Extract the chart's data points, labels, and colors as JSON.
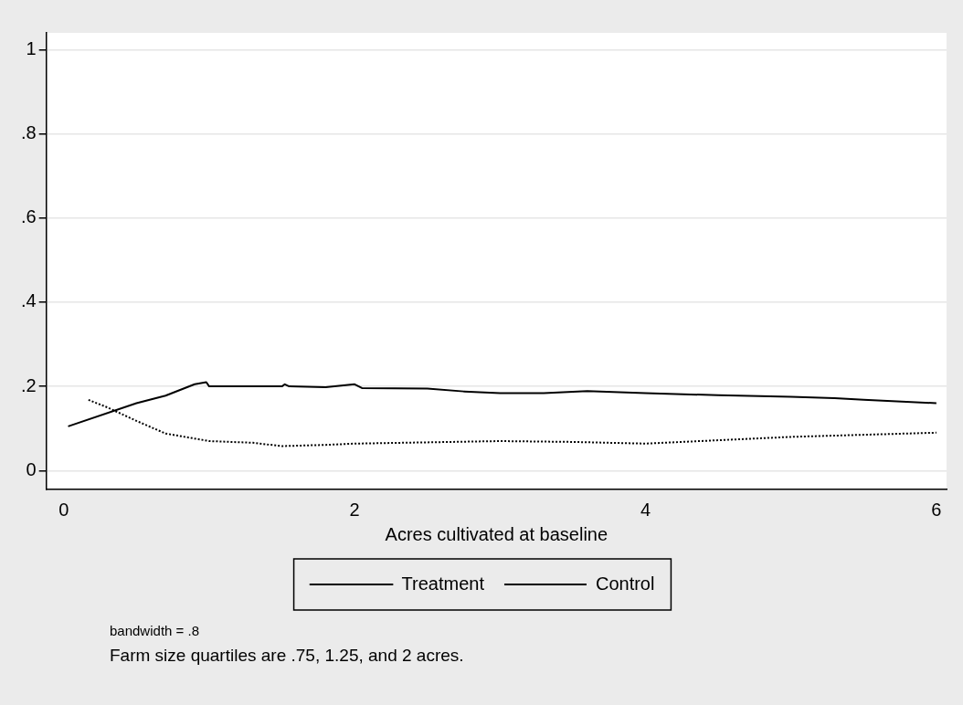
{
  "chart_data": {
    "type": "line",
    "xlabel": "Acres cultivated at baseline",
    "xlim": [
      -0.12,
      6.07
    ],
    "xticks": [
      0,
      2,
      4,
      6
    ],
    "ylim": [
      -0.045,
      1.04
    ],
    "yticks": [
      0,
      {
        "value": 0.2,
        "label": ".2"
      },
      {
        "value": 0.4,
        "label": ".4"
      },
      {
        "value": 0.6,
        "label": ".6"
      },
      {
        "value": 0.8,
        "label": ".8"
      },
      1
    ],
    "grid": "y",
    "legend": "bottom",
    "marker": "none",
    "series": [
      {
        "name": "Treatment",
        "color": "#000000",
        "line_style": "solid",
        "x": [
          0.03,
          0.5,
          0.7,
          0.9,
          0.98,
          1.0,
          1.3,
          1.5,
          1.52,
          1.55,
          1.8,
          2.0,
          2.05,
          2.5,
          2.75,
          3.0,
          3.3,
          3.6,
          4.0,
          4.5,
          5.0,
          5.3,
          5.5,
          6.0
        ],
        "values": [
          0.105,
          0.16,
          0.178,
          0.205,
          0.21,
          0.2,
          0.2,
          0.2,
          0.205,
          0.2,
          0.198,
          0.205,
          0.196,
          0.195,
          0.188,
          0.184,
          0.184,
          0.189,
          0.184,
          0.179,
          0.175,
          0.172,
          0.168,
          0.16
        ]
      },
      {
        "name": "Control",
        "color": "#000000",
        "line_style": "dotted",
        "x": [
          0.17,
          0.3,
          0.5,
          0.7,
          1.0,
          1.3,
          1.5,
          1.8,
          2.0,
          2.5,
          3.0,
          3.5,
          4.0,
          4.5,
          5.0,
          5.5,
          6.0
        ],
        "values": [
          0.168,
          0.15,
          0.118,
          0.088,
          0.07,
          0.066,
          0.058,
          0.061,
          0.064,
          0.067,
          0.07,
          0.068,
          0.064,
          0.072,
          0.08,
          0.085,
          0.09
        ]
      }
    ],
    "annotations": [
      "bandwidth = .8",
      "Farm size quartiles are .75, 1.25, and 2 acres."
    ]
  }
}
